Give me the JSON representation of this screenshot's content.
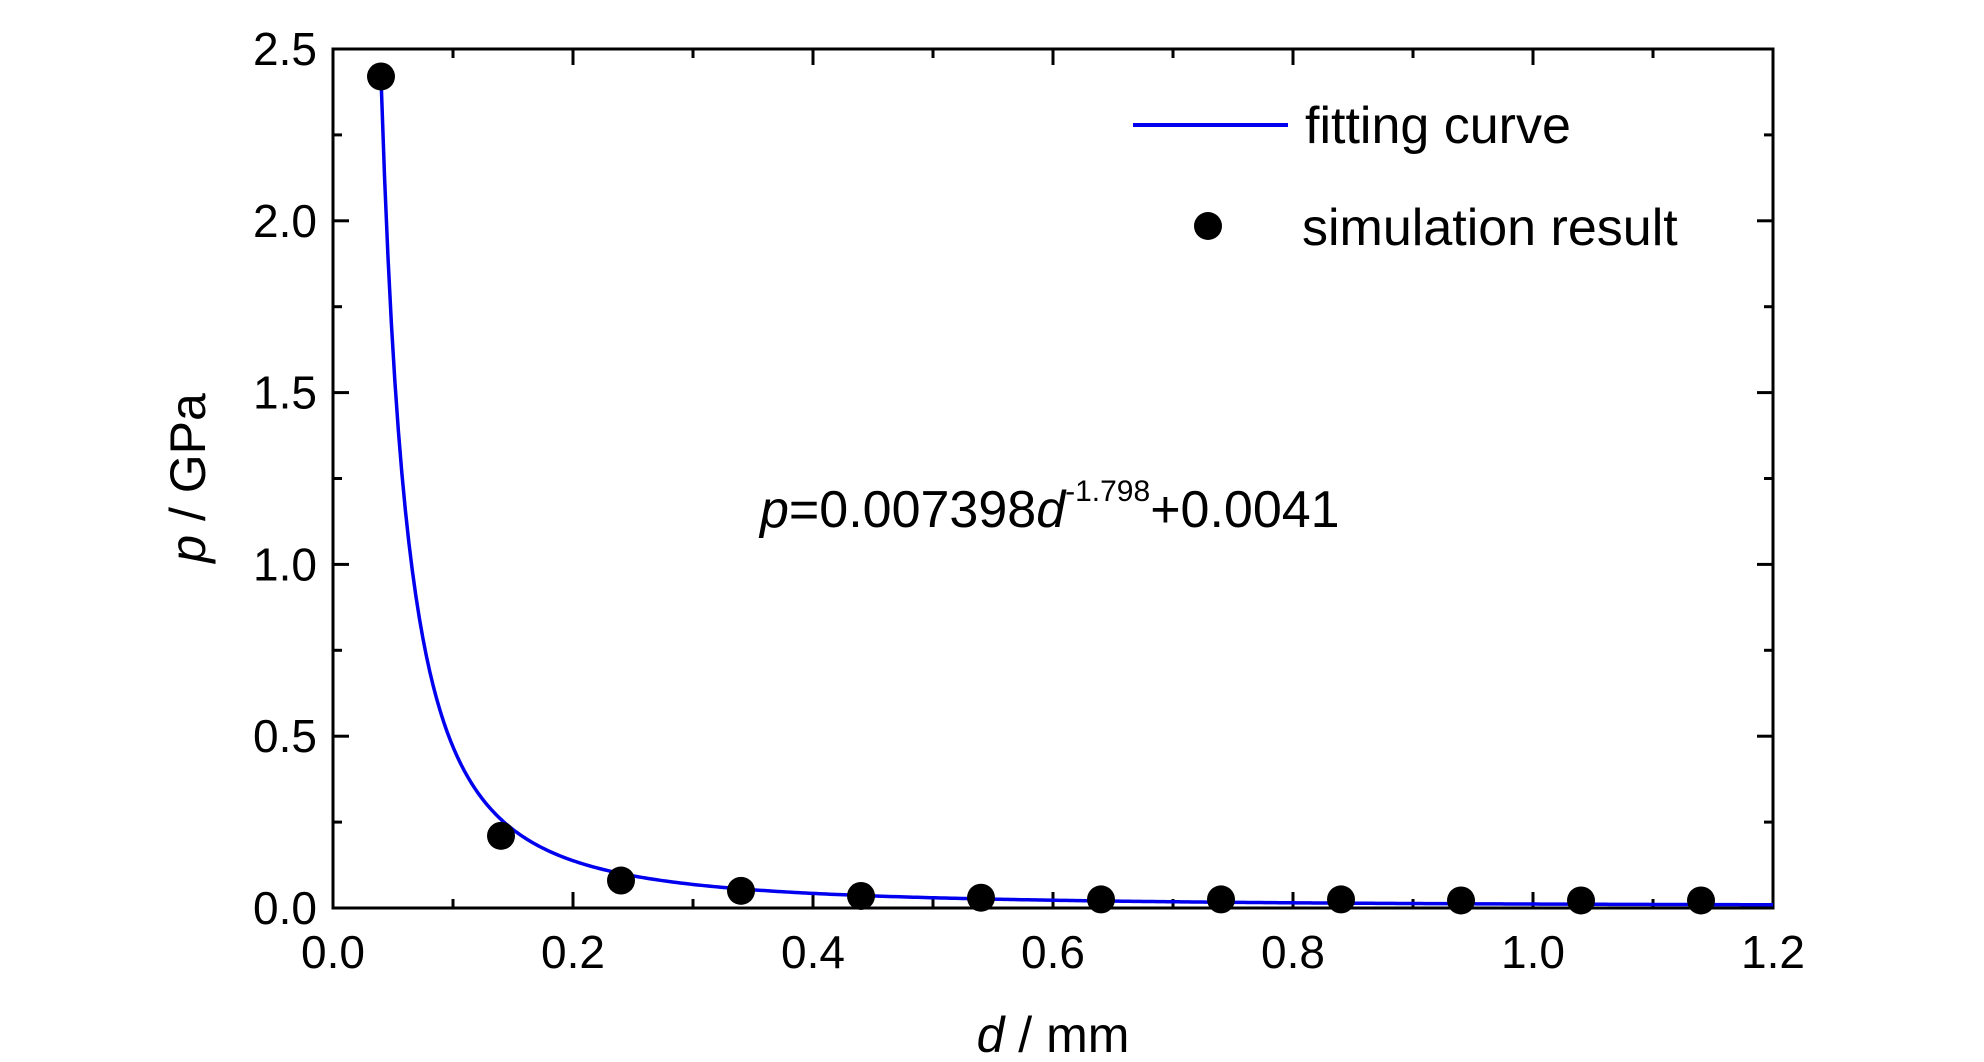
{
  "chart_data": {
    "type": "scatter",
    "xlabel_var": "d",
    "xlabel_unit": " / mm",
    "ylabel_var": "p",
    "ylabel_unit": " / GPa",
    "xlim": [
      0.0,
      1.2
    ],
    "ylim": [
      0.0,
      2.5
    ],
    "x_ticks": [
      "0.0",
      "0.2",
      "0.4",
      "0.6",
      "0.8",
      "1.0",
      "1.2"
    ],
    "y_ticks": [
      "0.0",
      "0.5",
      "1.0",
      "1.5",
      "2.0",
      "2.5"
    ],
    "grid": false,
    "legend_position": "top-right",
    "series": [
      {
        "name": "simulation result",
        "kind": "scatter",
        "color": "#000000",
        "x": [
          0.04,
          0.14,
          0.24,
          0.34,
          0.44,
          0.54,
          0.64,
          0.74,
          0.84,
          0.94,
          1.04,
          1.14
        ],
        "y": [
          2.42,
          0.21,
          0.08,
          0.05,
          0.035,
          0.03,
          0.025,
          0.025,
          0.025,
          0.022,
          0.022,
          0.022
        ]
      },
      {
        "name": "fitting curve",
        "kind": "line",
        "color": "#0000ee",
        "formula": {
          "a": 0.007398,
          "b": -1.798,
          "c": 0.0041
        },
        "x_range": [
          0.04,
          1.2
        ]
      }
    ],
    "annotation": {
      "var": "p",
      "eq_mid": "=0.007398",
      "var2": "d",
      "exponent": "-1.798",
      "tail": "+0.0041"
    }
  }
}
